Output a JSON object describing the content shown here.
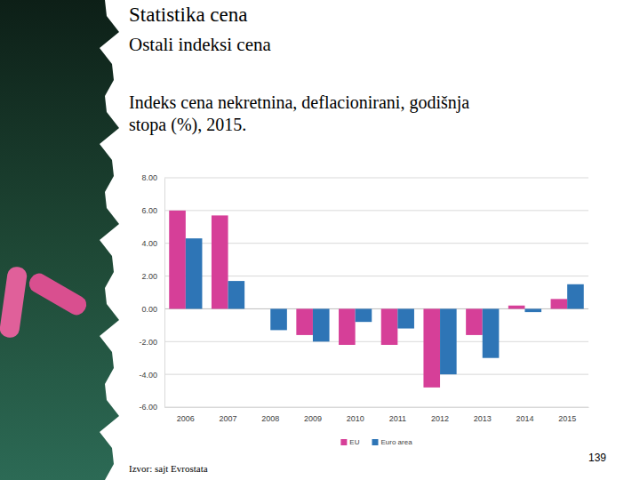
{
  "slide": {
    "heading": "Statistika cena",
    "subheading": "Ostali indeksi cena",
    "caption_lines": [
      "Indeks cena nekretnina, deflacionirani, godišnja",
      "stopa (%), 2015."
    ],
    "source": "Izvor: sajt Evrostata",
    "page_number": 139
  },
  "chart_data": {
    "type": "bar",
    "categories": [
      "2006",
      "2007",
      "2008",
      "2009",
      "2010",
      "2011",
      "2012",
      "2013",
      "2014",
      "2015"
    ],
    "series": [
      {
        "name": "EU",
        "color": "#d63f98",
        "values": [
          6.0,
          5.7,
          null,
          -1.6,
          -2.2,
          -2.2,
          -4.8,
          -1.6,
          0.2,
          0.6
        ]
      },
      {
        "name": "Euro area",
        "color": "#2e75b6",
        "values": [
          4.3,
          1.7,
          -1.3,
          -2.0,
          -0.8,
          -1.2,
          -4.0,
          -3.0,
          -0.2,
          1.5
        ]
      }
    ],
    "ylim": [
      -6,
      8
    ],
    "yticks": [
      {
        "value": -6,
        "label": "-6.00"
      },
      {
        "value": -4,
        "label": "-4.00"
      },
      {
        "value": -2,
        "label": "-2.00"
      },
      {
        "value": 0,
        "label": "0.00"
      },
      {
        "value": 2,
        "label": "2.00"
      },
      {
        "value": 4,
        "label": "4.00"
      },
      {
        "value": 6,
        "label": "6.00"
      },
      {
        "value": 8,
        "label": "8.00"
      }
    ],
    "grid": true,
    "legend": "bottom"
  }
}
